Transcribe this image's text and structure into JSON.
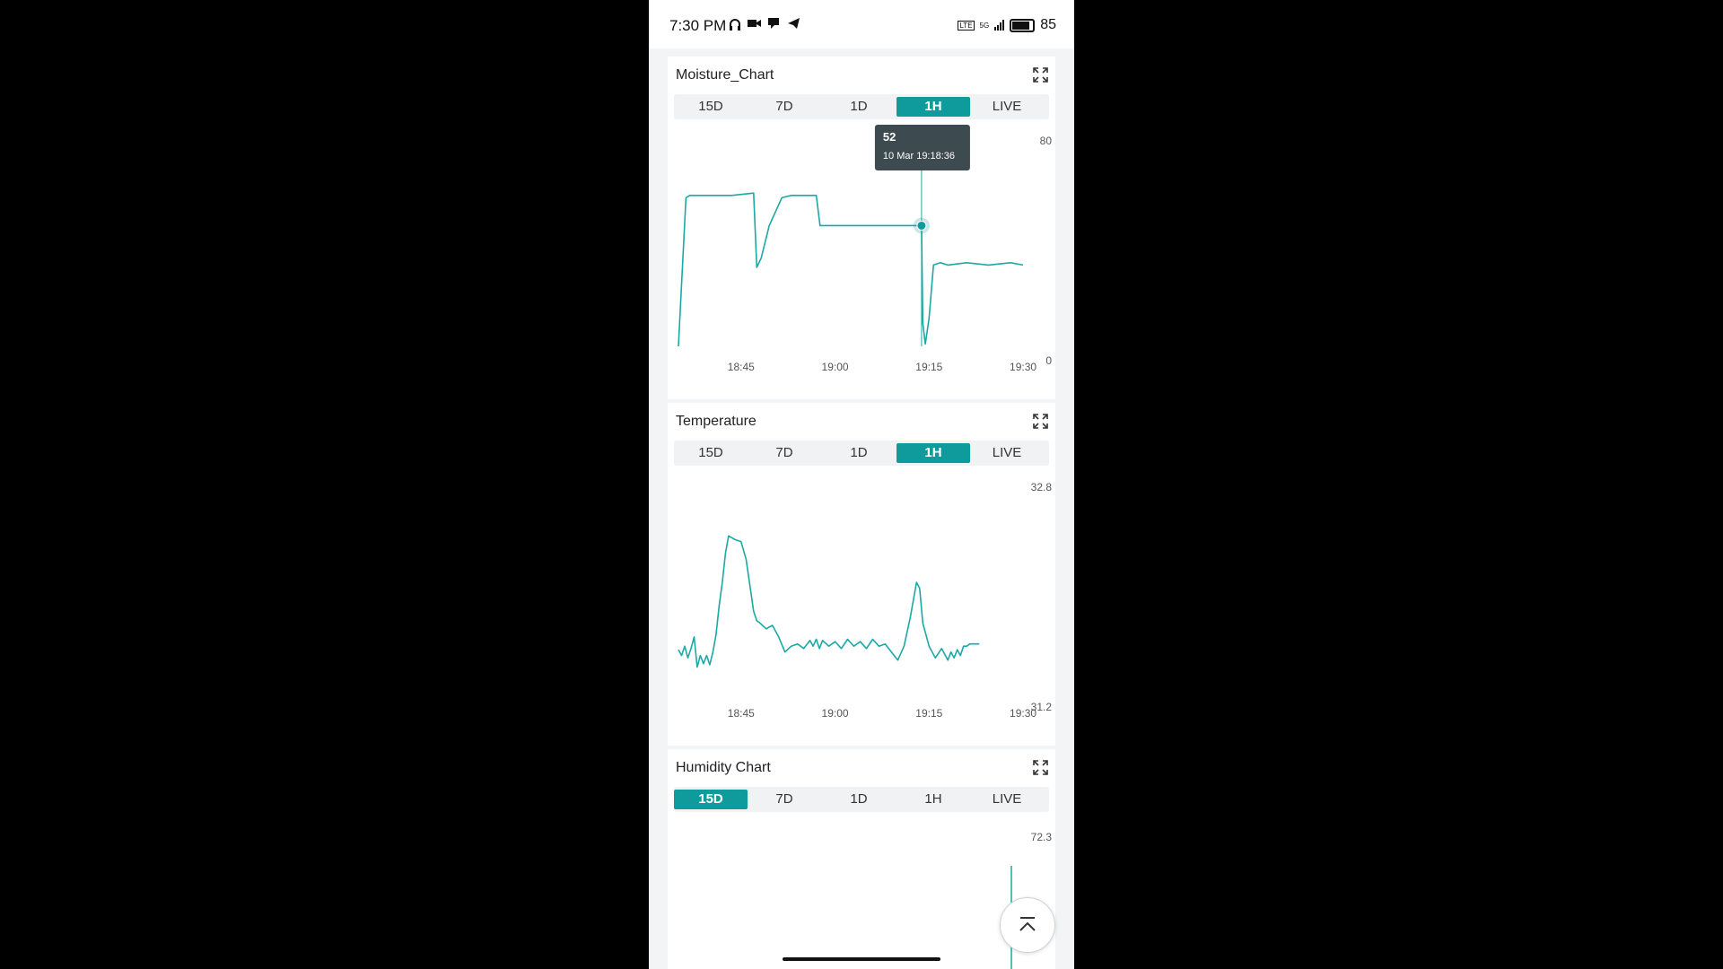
{
  "status_bar": {
    "time": "7:30 PM",
    "network": "5G",
    "lte": "LTE",
    "battery": "85"
  },
  "colors": {
    "accent": "#0f9a9c",
    "line": "#1aa9a5"
  },
  "cards": [
    {
      "title": "Moisture_Chart",
      "tabs": [
        "15D",
        "7D",
        "1D",
        "1H",
        "LIVE"
      ],
      "active_tab": "1H"
    },
    {
      "title": "Temperature",
      "tabs": [
        "15D",
        "7D",
        "1D",
        "1H",
        "LIVE"
      ],
      "active_tab": "1H"
    },
    {
      "title": "Humidity Chart",
      "tabs": [
        "15D",
        "7D",
        "1D",
        "1H",
        "LIVE"
      ],
      "active_tab": "15D"
    }
  ],
  "chart_data": [
    {
      "type": "line",
      "title": "Moisture_Chart",
      "ylim": [
        0,
        80
      ],
      "y_ticks": [
        "80",
        "0"
      ],
      "x_ticks": [
        "18:45",
        "19:00",
        "19:15",
        "19:30"
      ],
      "x_tick_minutes": [
        45,
        60,
        75,
        90
      ],
      "xlim_minutes": [
        35,
        92
      ],
      "series": [
        {
          "x_minutes": [
            35.0,
            36.2,
            36.8,
            38.5,
            41.0,
            43.5,
            47.0,
            47.5,
            48.2,
            49.5,
            51.5,
            53.0,
            57.0,
            57.6,
            63.0,
            69.0,
            72.5,
            73.8,
            74.0,
            74.4,
            75.0,
            75.7,
            76.8,
            78.0,
            81.0,
            84.5,
            88.0,
            90.0
          ],
          "y": [
            0,
            64,
            65,
            65,
            65,
            65,
            66,
            34,
            38,
            52,
            64,
            65,
            65,
            52,
            52,
            52,
            52,
            52,
            10,
            1,
            12,
            35,
            36,
            35,
            36,
            35,
            36,
            35
          ]
        }
      ],
      "tooltip": {
        "value": "52",
        "time": "10 Mar 19:18:36"
      }
    },
    {
      "type": "line",
      "title": "Temperature",
      "ylim": [
        31.2,
        32.8
      ],
      "y_ticks": [
        "32.8",
        "31.2"
      ],
      "x_ticks": [
        "18:45",
        "19:00",
        "19:15",
        "19:30"
      ],
      "x_tick_minutes": [
        45,
        60,
        75,
        90
      ],
      "xlim_minutes": [
        35,
        92
      ],
      "series": [
        {
          "x_minutes": [
            35.0,
            35.5,
            36.0,
            36.5,
            37.0,
            37.5,
            38.0,
            38.5,
            39.0,
            39.5,
            40.0,
            40.5,
            41.0,
            41.5,
            42.0,
            42.5,
            43.0,
            44.0,
            45.0,
            45.8,
            46.2,
            46.6,
            47.0,
            47.5,
            48.0,
            49.0,
            50.0,
            51.0,
            52.0,
            53.0,
            54.0,
            55.0,
            56.0,
            56.5,
            57.0,
            57.5,
            58.0,
            59.0,
            60.0,
            61.0,
            62.0,
            63.0,
            64.0,
            65.0,
            66.0,
            67.0,
            68.0,
            69.0,
            70.0,
            71.0,
            72.0,
            73.0,
            73.5,
            74.0,
            75.0,
            76.0,
            77.0,
            78.0,
            78.5,
            79.0,
            79.5,
            80.0,
            80.5,
            81.0,
            81.5,
            82.0,
            83.0
          ],
          "y": [
            31.57,
            31.52,
            31.6,
            31.5,
            31.58,
            31.68,
            31.42,
            31.52,
            31.45,
            31.52,
            31.44,
            31.55,
            31.7,
            31.95,
            32.15,
            32.4,
            32.55,
            32.52,
            32.5,
            32.35,
            32.2,
            32.05,
            31.9,
            31.82,
            31.8,
            31.75,
            31.78,
            31.68,
            31.55,
            31.6,
            31.62,
            31.58,
            31.65,
            31.6,
            31.66,
            31.58,
            31.65,
            31.6,
            31.64,
            31.58,
            31.66,
            31.6,
            31.64,
            31.58,
            31.66,
            31.6,
            31.62,
            31.55,
            31.48,
            31.6,
            31.85,
            32.15,
            32.1,
            31.8,
            31.6,
            31.5,
            31.58,
            31.48,
            31.55,
            31.5,
            31.57,
            31.52,
            31.6,
            31.6,
            31.62,
            31.62,
            31.62
          ]
        }
      ]
    },
    {
      "type": "line",
      "title": "Humidity Chart",
      "y_ticks": [
        "72.3"
      ]
    }
  ]
}
